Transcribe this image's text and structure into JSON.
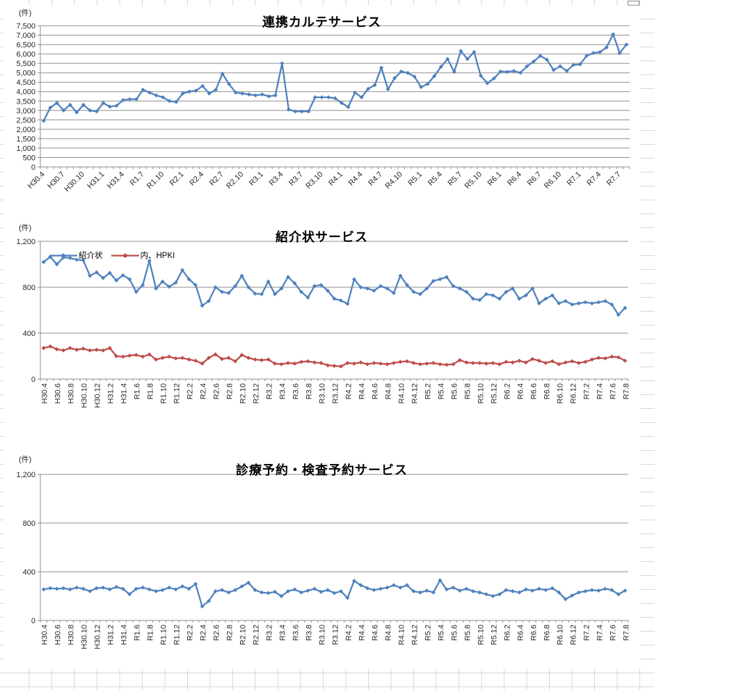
{
  "colors": {
    "series_blue": "#4F81BD",
    "series_red": "#BE4B48",
    "plot_grid_line": "#8E8E8E",
    "axis_line": "#8C8C8C",
    "tick_text": "#262626",
    "sheet_grid_line": "#D7D7D7"
  },
  "chart_data": [
    {
      "type": "line",
      "title": "連携カルテサービス",
      "unit_label": "(件)",
      "ylim": [
        0,
        7500
      ],
      "y_tick_interval": 500,
      "y_tick_labels": [
        "0",
        "500",
        "1,000",
        "1,500",
        "2,000",
        "2,500",
        "3,000",
        "3,500",
        "4,000",
        "4,500",
        "5,000",
        "5,500",
        "6,000",
        "6,500",
        "7,000",
        "7,500"
      ],
      "grid": true,
      "legend_position": "none",
      "x_tick_step": 3,
      "x_tick_labels": [
        "H30.4",
        "H30.7",
        "H30.10",
        "H31.1",
        "H31.4",
        "R1.7",
        "R1.10",
        "R2.1",
        "R2.4",
        "R2.7",
        "R2.10",
        "R3.1",
        "R3.4",
        "R3.7",
        "R3.10",
        "R4.1",
        "R4.4",
        "R4.7",
        "R4.10",
        "R5.1",
        "R5.4",
        "R5.7",
        "R5.10",
        "R6.1",
        "R6.4",
        "R6.7",
        "R6.10",
        "R7.1",
        "R7.4",
        "R7.7"
      ],
      "x_months": [
        "H30.4",
        "H30.5",
        "H30.6",
        "H30.7",
        "H30.8",
        "H30.9",
        "H30.10",
        "H30.11",
        "H30.12",
        "H31.1",
        "H31.2",
        "H31.3",
        "H31.4",
        "R1.5",
        "R1.6",
        "R1.7",
        "R1.8",
        "R1.9",
        "R1.10",
        "R1.11",
        "R1.12",
        "R2.1",
        "R2.2",
        "R2.3",
        "R2.4",
        "R2.5",
        "R2.6",
        "R2.7",
        "R2.8",
        "R2.9",
        "R2.10",
        "R2.11",
        "R2.12",
        "R3.1",
        "R3.2",
        "R3.3",
        "R3.4",
        "R3.5",
        "R3.6",
        "R3.7",
        "R3.8",
        "R3.9",
        "R3.10",
        "R3.11",
        "R3.12",
        "R4.1",
        "R4.2",
        "R4.3",
        "R4.4",
        "R4.5",
        "R4.6",
        "R4.7",
        "R4.8",
        "R4.9",
        "R4.10",
        "R4.11",
        "R4.12",
        "R5.1",
        "R5.2",
        "R5.3",
        "R5.4",
        "R5.5",
        "R5.6",
        "R5.7",
        "R5.8",
        "R5.9",
        "R5.10",
        "R5.11",
        "R5.12",
        "R6.1",
        "R6.2",
        "R6.3",
        "R6.4",
        "R6.5",
        "R6.6",
        "R6.7",
        "R6.8",
        "R6.9",
        "R6.10",
        "R6.11",
        "R6.12",
        "R7.1",
        "R7.2",
        "R7.3",
        "R7.4",
        "R7.5",
        "R7.6",
        "R7.7",
        "R7.8"
      ],
      "series": [
        {
          "color": "#4F81BD",
          "values": [
            2450,
            3150,
            3400,
            3000,
            3300,
            2900,
            3300,
            3000,
            2950,
            3400,
            3200,
            3250,
            3550,
            3600,
            3600,
            4100,
            3950,
            3800,
            3700,
            3500,
            3450,
            3900,
            4000,
            4050,
            4300,
            3900,
            4100,
            4950,
            4400,
            3950,
            3900,
            3850,
            3800,
            3850,
            3750,
            3800,
            5500,
            3050,
            2950,
            2950,
            2950,
            3700,
            3700,
            3700,
            3650,
            3400,
            3180,
            3950,
            3700,
            4150,
            4350,
            5270,
            4130,
            4720,
            5070,
            4990,
            4800,
            4240,
            4410,
            4830,
            5320,
            5730,
            5050,
            6160,
            5730,
            6100,
            4850,
            4450,
            4700,
            5070,
            5050,
            5100,
            5000,
            5350,
            5600,
            5900,
            5700,
            5150,
            5350,
            5100,
            5420,
            5450,
            5900,
            6050,
            6100,
            6350,
            7050,
            6050,
            6500
          ]
        }
      ]
    },
    {
      "type": "line",
      "title": "紹介状サービス",
      "unit_label": "(件)",
      "ylim": [
        0,
        1200
      ],
      "y_tick_interval": 400,
      "y_tick_labels": [
        "0",
        "400",
        "800",
        "1,200"
      ],
      "grid": true,
      "legend_position": "top-left-inside",
      "x_tick_step": 2,
      "x_tick_labels": [
        "H30.4",
        "H30.6",
        "H30.8",
        "H30.10",
        "H30.12",
        "H31.2",
        "H31.4",
        "R1.6",
        "R1.8",
        "R1.10",
        "R1.12",
        "R2.2",
        "R2.4",
        "R2.6",
        "R2.8",
        "R2.10",
        "R2.12",
        "R3.2",
        "R3.4",
        "R3.6",
        "R3.8",
        "R3.10",
        "R3.12",
        "R4.2",
        "R4.4",
        "R4.6",
        "R4.8",
        "R4.10",
        "R4.12",
        "R5.2",
        "R5.4",
        "R5.6",
        "R5.8",
        "R5.10",
        "R5.12",
        "R6.2",
        "R6.4",
        "R6.6",
        "R6.8",
        "R6.10",
        "R6.12",
        "R7.2",
        "R7.4",
        "R7.6",
        "R7.8"
      ],
      "x_months": [
        "H30.4",
        "H30.5",
        "H30.6",
        "H30.7",
        "H30.8",
        "H30.9",
        "H30.10",
        "H30.11",
        "H30.12",
        "H31.1",
        "H31.2",
        "H31.3",
        "H31.4",
        "R1.5",
        "R1.6",
        "R1.7",
        "R1.8",
        "R1.9",
        "R1.10",
        "R1.11",
        "R1.12",
        "R2.1",
        "R2.2",
        "R2.3",
        "R2.4",
        "R2.5",
        "R2.6",
        "R2.7",
        "R2.8",
        "R2.9",
        "R2.10",
        "R2.11",
        "R2.12",
        "R3.1",
        "R3.2",
        "R3.3",
        "R3.4",
        "R3.5",
        "R3.6",
        "R3.7",
        "R3.8",
        "R3.9",
        "R3.10",
        "R3.11",
        "R3.12",
        "R4.1",
        "R4.2",
        "R4.3",
        "R4.4",
        "R4.5",
        "R4.6",
        "R4.7",
        "R4.8",
        "R4.9",
        "R4.10",
        "R4.11",
        "R4.12",
        "R5.1",
        "R5.2",
        "R5.3",
        "R5.4",
        "R5.5",
        "R5.6",
        "R5.7",
        "R5.8",
        "R5.9",
        "R5.10",
        "R5.11",
        "R5.12",
        "R6.1",
        "R6.2",
        "R6.3",
        "R6.4",
        "R6.5",
        "R6.6",
        "R6.7",
        "R6.8",
        "R6.9",
        "R6.10",
        "R6.11",
        "R6.12",
        "R7.1",
        "R7.2",
        "R7.3",
        "R7.4",
        "R7.5",
        "R7.6",
        "R7.7",
        "R7.8"
      ],
      "series": [
        {
          "name": "紹介状",
          "color": "#4F81BD",
          "values": [
            1020,
            1065,
            1000,
            1060,
            1055,
            1040,
            1035,
            900,
            930,
            880,
            925,
            860,
            905,
            870,
            760,
            820,
            1030,
            790,
            850,
            805,
            840,
            950,
            870,
            820,
            640,
            680,
            800,
            760,
            750,
            810,
            900,
            800,
            745,
            740,
            850,
            740,
            790,
            890,
            835,
            760,
            710,
            810,
            820,
            770,
            700,
            685,
            655,
            870,
            800,
            790,
            770,
            810,
            790,
            750,
            900,
            820,
            760,
            740,
            790,
            855,
            870,
            890,
            810,
            790,
            760,
            700,
            690,
            740,
            730,
            700,
            760,
            790,
            700,
            730,
            790,
            660,
            700,
            730,
            660,
            680,
            650,
            660,
            670,
            660,
            670,
            680,
            650,
            560,
            620
          ]
        },
        {
          "name": "内、HPKI",
          "color": "#BE4B48",
          "values": [
            270,
            285,
            260,
            250,
            270,
            255,
            265,
            250,
            255,
            250,
            270,
            200,
            195,
            205,
            210,
            195,
            215,
            170,
            185,
            195,
            180,
            185,
            170,
            160,
            135,
            185,
            215,
            175,
            185,
            155,
            210,
            185,
            170,
            165,
            170,
            135,
            130,
            140,
            135,
            150,
            155,
            145,
            140,
            120,
            115,
            110,
            140,
            135,
            145,
            130,
            140,
            135,
            130,
            140,
            150,
            155,
            140,
            130,
            135,
            140,
            130,
            125,
            130,
            165,
            145,
            140,
            140,
            135,
            140,
            130,
            150,
            145,
            160,
            145,
            175,
            160,
            140,
            155,
            130,
            145,
            155,
            140,
            150,
            170,
            185,
            180,
            195,
            190,
            160
          ]
        }
      ]
    },
    {
      "type": "line",
      "title": "診療予約・検査予約サービス",
      "unit_label": "(件)",
      "ylim": [
        0,
        1200
      ],
      "y_tick_interval": 400,
      "y_tick_labels": [
        "0",
        "400",
        "800",
        "1,200"
      ],
      "grid": true,
      "legend_position": "none",
      "x_tick_step": 2,
      "x_tick_labels": [
        "H30.4",
        "H30.6",
        "H30.8",
        "H30.10",
        "H30.12",
        "H31.2",
        "H31.4",
        "R1.6",
        "R1.8",
        "R1.10",
        "R1.12",
        "R2.2",
        "R2.4",
        "R2.6",
        "R2.8",
        "R2.10",
        "R2.12",
        "R3.2",
        "R3.4",
        "R3.6",
        "R3.8",
        "R3.10",
        "R3.12",
        "R4.2",
        "R4.4",
        "R4.6",
        "R4.8",
        "R4.10",
        "R4.12",
        "R5.2",
        "R5.4",
        "R5.6",
        "R5.8",
        "R5.10",
        "R5.12",
        "R6.2",
        "R6.4",
        "R6.6",
        "R6.8",
        "R6.10",
        "R6.12",
        "R7.2",
        "R7.4",
        "R7.6",
        "R7.8"
      ],
      "x_months": [
        "H30.4",
        "H30.5",
        "H30.6",
        "H30.7",
        "H30.8",
        "H30.9",
        "H30.10",
        "H30.11",
        "H30.12",
        "H31.1",
        "H31.2",
        "H31.3",
        "H31.4",
        "R1.5",
        "R1.6",
        "R1.7",
        "R1.8",
        "R1.9",
        "R1.10",
        "R1.11",
        "R1.12",
        "R2.1",
        "R2.2",
        "R2.3",
        "R2.4",
        "R2.5",
        "R2.6",
        "R2.7",
        "R2.8",
        "R2.9",
        "R2.10",
        "R2.11",
        "R2.12",
        "R3.1",
        "R3.2",
        "R3.3",
        "R3.4",
        "R3.5",
        "R3.6",
        "R3.7",
        "R3.8",
        "R3.9",
        "R3.10",
        "R3.11",
        "R3.12",
        "R4.1",
        "R4.2",
        "R4.3",
        "R4.4",
        "R4.5",
        "R4.6",
        "R4.7",
        "R4.8",
        "R4.9",
        "R4.10",
        "R4.11",
        "R4.12",
        "R5.1",
        "R5.2",
        "R5.3",
        "R5.4",
        "R5.5",
        "R5.6",
        "R5.7",
        "R5.8",
        "R5.9",
        "R5.10",
        "R5.11",
        "R5.12",
        "R6.1",
        "R6.2",
        "R6.3",
        "R6.4",
        "R6.5",
        "R6.6",
        "R6.7",
        "R6.8",
        "R6.9",
        "R6.10",
        "R6.11",
        "R6.12",
        "R7.1",
        "R7.2",
        "R7.3",
        "R7.4",
        "R7.5",
        "R7.6",
        "R7.7",
        "R7.8"
      ],
      "series": [
        {
          "color": "#4F81BD",
          "values": [
            255,
            265,
            260,
            265,
            255,
            270,
            260,
            240,
            265,
            270,
            255,
            275,
            260,
            215,
            260,
            270,
            255,
            240,
            250,
            270,
            255,
            280,
            260,
            300,
            115,
            160,
            240,
            250,
            230,
            250,
            280,
            310,
            250,
            230,
            225,
            235,
            200,
            240,
            255,
            230,
            245,
            260,
            235,
            250,
            225,
            240,
            185,
            325,
            290,
            265,
            250,
            260,
            270,
            290,
            270,
            290,
            240,
            230,
            245,
            230,
            330,
            255,
            270,
            245,
            260,
            240,
            230,
            215,
            200,
            215,
            250,
            240,
            230,
            255,
            245,
            260,
            250,
            265,
            230,
            175,
            205,
            230,
            240,
            250,
            245,
            260,
            250,
            215,
            245
          ]
        }
      ]
    }
  ]
}
